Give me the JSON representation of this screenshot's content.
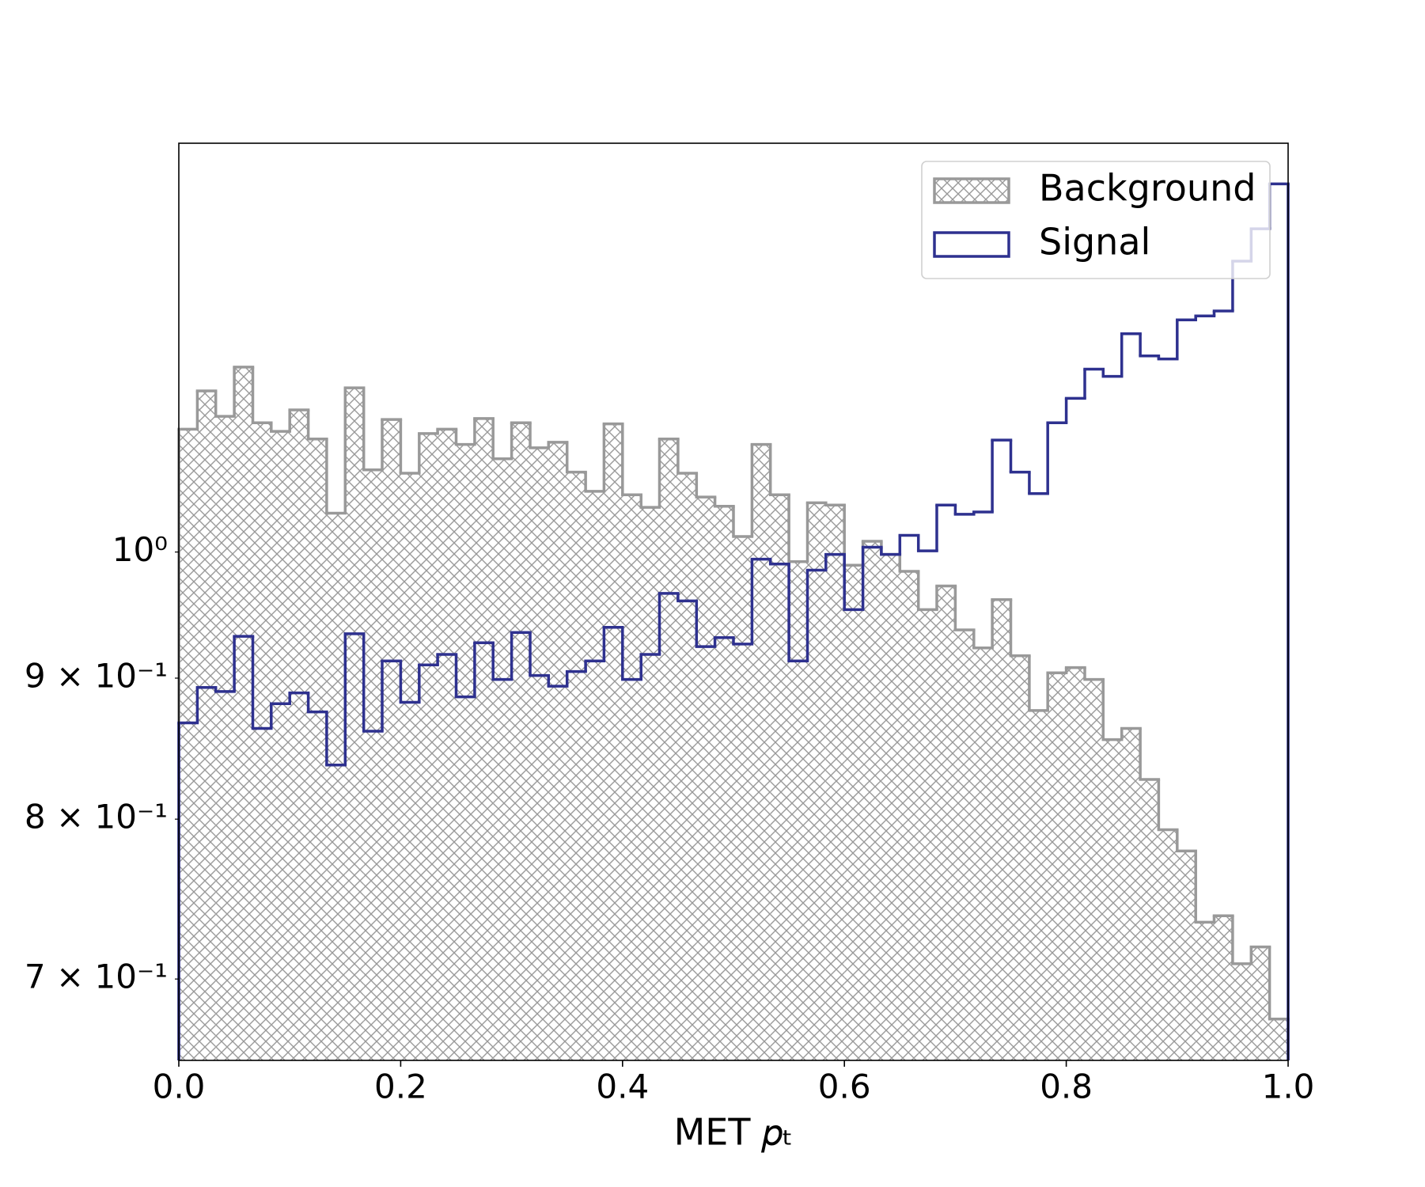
{
  "chart_data": {
    "type": "histogram",
    "xlabel": "MET 𝑝ₜ",
    "yscale": "log",
    "legend": "upper right",
    "bins": [
      0,
      0.0167,
      0.0333,
      0.05,
      0.0667,
      0.0833,
      0.1,
      0.1167,
      0.1333,
      0.15,
      0.1667,
      0.1833,
      0.2,
      0.2167,
      0.2333,
      0.25,
      0.2667,
      0.2833,
      0.3,
      0.3167,
      0.3333,
      0.35,
      0.3667,
      0.3833,
      0.4,
      0.4167,
      0.4333,
      0.45,
      0.4667,
      0.4833,
      0.5,
      0.5167,
      0.5333,
      0.55,
      0.5667,
      0.5833,
      0.6,
      0.6167,
      0.6333,
      0.65,
      0.6667,
      0.6833,
      0.7,
      0.7167,
      0.7333,
      0.75,
      0.7667,
      0.7833,
      0.8,
      0.8167,
      0.8333,
      0.85,
      0.8667,
      0.8833,
      0.9,
      0.9167,
      0.9333,
      0.95,
      0.9667,
      0.9833,
      1
    ],
    "series": [
      {
        "name": "Background",
        "color": "#999999",
        "hatch": true,
        "values": [
          1.108,
          1.144,
          1.12,
          1.167,
          1.114,
          1.106,
          1.126,
          1.099,
          1.033,
          1.147,
          1.071,
          1.117,
          1.068,
          1.104,
          1.108,
          1.094,
          1.118,
          1.081,
          1.114,
          1.091,
          1.096,
          1.069,
          1.052,
          1.113,
          1.049,
          1.038,
          1.099,
          1.068,
          1.047,
          1.039,
          1.013,
          1.094,
          1.049,
          0.992,
          1.042,
          1.04,
          0.989,
          1.009,
          0.998,
          0.984,
          0.953,
          0.972,
          0.937,
          0.923,
          0.961,
          0.917,
          0.876,
          0.904,
          0.908,
          0.899,
          0.855,
          0.863,
          0.827,
          0.793,
          0.779,
          0.734,
          0.738,
          0.709,
          0.719,
          0.677
        ]
      },
      {
        "name": "Signal",
        "color": "#2e318f",
        "hatch": false,
        "values": [
          0.867,
          0.893,
          0.89,
          0.932,
          0.863,
          0.881,
          0.889,
          0.875,
          0.837,
          0.934,
          0.861,
          0.913,
          0.882,
          0.91,
          0.918,
          0.886,
          0.927,
          0.899,
          0.935,
          0.902,
          0.894,
          0.905,
          0.913,
          0.939,
          0.899,
          0.918,
          0.966,
          0.96,
          0.924,
          0.931,
          0.926,
          0.994,
          0.99,
          0.913,
          0.985,
          0.998,
          0.953,
          1.004,
          0.998,
          1.014,
          1.001,
          1.04,
          1.032,
          1.034,
          1.098,
          1.069,
          1.05,
          1.114,
          1.137,
          1.165,
          1.158,
          1.2,
          1.178,
          1.175,
          1.214,
          1.218,
          1.223,
          1.275,
          1.31,
          1.36
        ]
      }
    ],
    "xlim": [
      0,
      1
    ],
    "ylim": [
      0.654,
      1.407
    ],
    "xticks": [
      {
        "value": 0,
        "label": "0.0"
      },
      {
        "value": 0.2,
        "label": "0.2"
      },
      {
        "value": 0.4,
        "label": "0.4"
      },
      {
        "value": 0.6,
        "label": "0.6"
      },
      {
        "value": 0.8,
        "label": "0.8"
      },
      {
        "value": 1,
        "label": "1.0"
      }
    ],
    "yticks": [
      {
        "value": 0.7,
        "label": "7 × 10⁻¹"
      },
      {
        "value": 0.8,
        "label": "8 × 10⁻¹"
      },
      {
        "value": 0.9,
        "label": "9 × 10⁻¹"
      },
      {
        "value": 1,
        "label": "10⁰"
      }
    ]
  }
}
